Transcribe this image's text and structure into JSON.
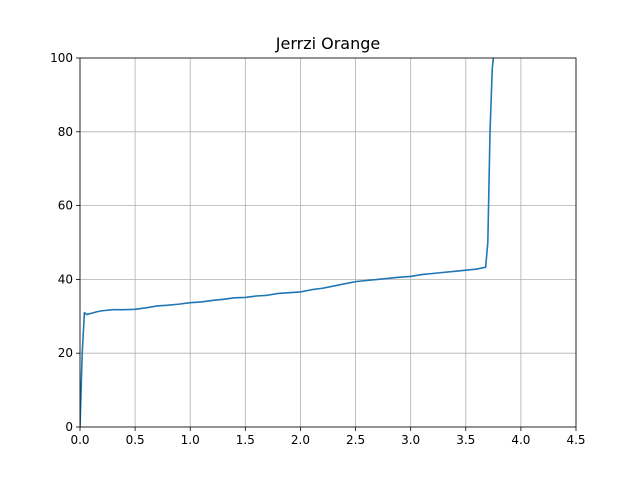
{
  "chart_data": {
    "type": "line",
    "title": "Jerrzi Orange",
    "xlabel": "",
    "ylabel": "",
    "xlim": [
      0,
      4.5
    ],
    "ylim": [
      0,
      100
    ],
    "x_ticks": [
      0.0,
      0.5,
      1.0,
      1.5,
      2.0,
      2.5,
      3.0,
      3.5,
      4.0,
      4.5
    ],
    "x_tick_labels": [
      "0.0",
      "0.5",
      "1.0",
      "1.5",
      "2.0",
      "2.5",
      "3.0",
      "3.5",
      "4.0",
      "4.5"
    ],
    "y_ticks": [
      0,
      20,
      40,
      60,
      80,
      100
    ],
    "y_tick_labels": [
      "0",
      "20",
      "40",
      "60",
      "80",
      "100"
    ],
    "grid": true,
    "series": [
      {
        "color": "#1f77b4",
        "x": [
          0.0,
          0.02,
          0.04,
          0.06,
          0.1,
          0.15,
          0.2,
          0.3,
          0.4,
          0.5,
          0.6,
          0.7,
          0.8,
          0.9,
          1.0,
          1.1,
          1.2,
          1.3,
          1.4,
          1.5,
          1.6,
          1.7,
          1.8,
          1.9,
          2.0,
          2.1,
          2.2,
          2.3,
          2.4,
          2.5,
          2.6,
          2.7,
          2.8,
          2.9,
          3.0,
          3.1,
          3.2,
          3.3,
          3.4,
          3.5,
          3.6,
          3.68,
          3.7,
          3.72,
          3.74,
          3.75
        ],
        "y": [
          0,
          20,
          31,
          30.5,
          30.8,
          31.2,
          31.5,
          31.8,
          31.8,
          31.9,
          32.3,
          32.8,
          33.0,
          33.3,
          33.7,
          33.9,
          34.3,
          34.6,
          35.0,
          35.1,
          35.5,
          35.7,
          36.2,
          36.4,
          36.6,
          37.2,
          37.6,
          38.2,
          38.8,
          39.4,
          39.7,
          40.0,
          40.3,
          40.6,
          40.8,
          41.3,
          41.6,
          41.9,
          42.2,
          42.5,
          42.8,
          43.3,
          50,
          80,
          97,
          100
        ]
      }
    ]
  }
}
